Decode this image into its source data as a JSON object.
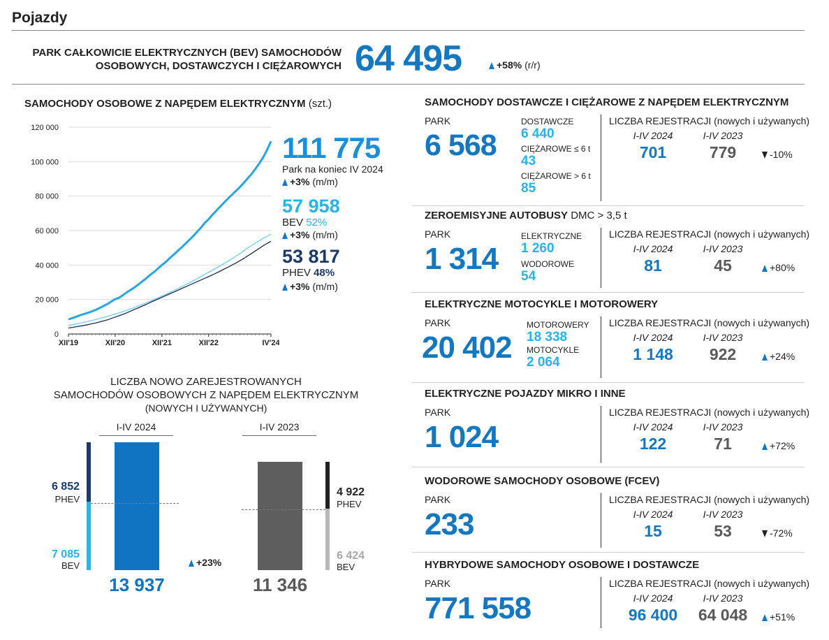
{
  "header": {
    "title": "Pojazdy"
  },
  "bev_total": {
    "label_line1": "PARK CAŁKOWICIE ELEKTRYCZNYCH (BEV) SAMOCHODÓW",
    "label_line2": "OSOBOWYCH, DOSTAWCZYCH I CIĘŻAROWYCH",
    "value": "64 495",
    "change": "+58%",
    "change_unit": "(r/r)",
    "change_dir": "up"
  },
  "passenger_chart": {
    "title": "SAMOCHODY OSOBOWE Z NAPĘDEM ELEKTRYCZNYM",
    "unit": "(szt.)",
    "total_value": "111 775",
    "total_label": "Park na koniec IV 2024",
    "total_change": "+3%",
    "total_change_unit": "(m/m)",
    "bev_value": "57 958",
    "bev_label": "BEV",
    "bev_share": "52%",
    "bev_change": "+3%",
    "bev_change_unit": "(m/m)",
    "phev_value": "53 817",
    "phev_label": "PHEV",
    "phev_share": "48%",
    "phev_change": "+3%",
    "phev_change_unit": "(m/m)"
  },
  "chart_data": [
    {
      "type": "line",
      "title": "SAMOCHODY OSOBOWE Z NAPĘDEM ELEKTRYCZNYM (szt.)",
      "x_ticks": [
        "XII'19",
        "XII'20",
        "XII'21",
        "XII'22",
        "IV'24"
      ],
      "x_tick_index": [
        0,
        12,
        24,
        36,
        52
      ],
      "ylim": [
        0,
        120000
      ],
      "y_ticks": [
        0,
        20000,
        40000,
        60000,
        80000,
        100000,
        120000
      ],
      "y_tick_labels": [
        "0",
        "20 000",
        "40 000",
        "60 000",
        "80 000",
        "100 000",
        "120 000"
      ],
      "grid": true,
      "series": [
        {
          "name": "Park na koniec IV 2024",
          "color": "#27a6e0",
          "values": [
            8500,
            9200,
            10000,
            10900,
            11600,
            12300,
            13100,
            14000,
            15100,
            16200,
            17400,
            18800,
            20200,
            21000,
            22600,
            24200,
            25600,
            27100,
            28800,
            30600,
            32300,
            34300,
            36000,
            38000,
            40000,
            41800,
            44000,
            46000,
            48100,
            50100,
            52300,
            54500,
            56700,
            59200,
            61600,
            64500,
            66600,
            69200,
            71600,
            74000,
            76300,
            78700,
            80800,
            83000,
            85200,
            87600,
            90200,
            92800,
            95800,
            99000,
            102500,
            106800,
            111775
          ]
        },
        {
          "name": "BEV",
          "color": "#6fcdef",
          "values": [
            5000,
            5400,
            5800,
            6300,
            6800,
            7300,
            7800,
            8400,
            9000,
            9600,
            10200,
            10900,
            11600,
            12300,
            13000,
            13800,
            14600,
            15400,
            16300,
            17200,
            18100,
            19000,
            20000,
            21000,
            22000,
            23000,
            24100,
            25200,
            26300,
            27400,
            28500,
            29600,
            30800,
            32000,
            33300,
            34700,
            35800,
            37000,
            38300,
            39600,
            41000,
            42300,
            43700,
            45200,
            46600,
            48200,
            49900,
            51300,
            52700,
            54100,
            55500,
            56700,
            57958
          ]
        },
        {
          "name": "PHEV",
          "color": "#1b2c4a",
          "values": [
            3500,
            3800,
            4200,
            4600,
            5000,
            5400,
            5900,
            6400,
            7000,
            7600,
            8200,
            9000,
            9800,
            10600,
            11400,
            12300,
            13300,
            14300,
            15200,
            16200,
            17200,
            18300,
            19300,
            20300,
            21300,
            22300,
            23300,
            24300,
            25300,
            26300,
            27300,
            28300,
            29300,
            30300,
            31300,
            32300,
            33300,
            34300,
            35400,
            36500,
            37700,
            38800,
            40000,
            41200,
            42500,
            43800,
            45300,
            46700,
            48200,
            49700,
            51200,
            52500,
            53817
          ]
        }
      ]
    },
    {
      "type": "bar",
      "title": "LICZBA NOWO ZAREJESTROWANYCH SAMOCHODÓW OSOBOWYCH Z NAPĘDEM ELEKTRYCZNYM (NOWYCH I UŻYWANYCH)",
      "categories": [
        "I-IV 2024",
        "I-IV 2023"
      ],
      "series": [
        {
          "name": "PHEV",
          "values": [
            6852,
            4922
          ]
        },
        {
          "name": "BEV",
          "values": [
            7085,
            6424
          ]
        }
      ],
      "totals": [
        13937,
        11346
      ]
    }
  ],
  "regs_chart": {
    "title_line1": "LICZBA NOWO ZAREJESTROWANYCH",
    "title_line2": "SAMOCHODÓW OSOBOWYCH Z NAPĘDEM ELEKTRYCZNYM",
    "title_line3": "(NOWYCH I UŻYWANYCH)",
    "period_2024": "I-IV 2024",
    "period_2023": "I-IV 2023",
    "phev_2024": "6 852",
    "bev_2024": "7 085",
    "total_2024": "13 937",
    "phev_2023": "4 922",
    "bev_2023": "6 424",
    "total_2023": "11 346",
    "phev_label": "PHEV",
    "bev_label": "BEV",
    "change": "+23%"
  },
  "sections": [
    {
      "id": "vans",
      "title": "SAMOCHODY DOSTAWCZE I CIĘŻAROWE Z NAPĘDEM ELEKTRYCZNYM",
      "title_suffix": "",
      "park_label": "PARK",
      "park_value": "6 568",
      "sub": [
        {
          "label": "DOSTAWCZE",
          "value": "6 440"
        },
        {
          "label": "CIĘŻAROWE ≤ 6 t",
          "value": "43"
        },
        {
          "label": "CIĘŻAROWE > 6 t",
          "value": "85"
        }
      ],
      "reg_title": "LICZBA REJESTRACJI (nowych i używanych)",
      "period_a": "I-IV 2024",
      "period_b": "I-IV 2023",
      "reg_a": "701",
      "reg_b": "779",
      "change": "-10%",
      "change_dir": "down"
    },
    {
      "id": "buses",
      "title": "ZEROEMISYJNE AUTOBUSY",
      "title_suffix": "DMC > 3,5 t",
      "park_label": "PARK",
      "park_value": "1 314",
      "sub": [
        {
          "label": "ELEKTRYCZNE",
          "value": "1 260"
        },
        {
          "label": "WODOROWE",
          "value": "54"
        }
      ],
      "reg_title": "LICZBA REJESTRACJI (nowych i używanych)",
      "period_a": "I-IV 2024",
      "period_b": "I-IV 2023",
      "reg_a": "81",
      "reg_b": "45",
      "change": "+80%",
      "change_dir": "up"
    },
    {
      "id": "moto",
      "title": "ELEKTRYCZNE MOTOCYKLE I MOTOROWERY",
      "title_suffix": "",
      "park_label": "PARK",
      "park_value": "20 402",
      "sub": [
        {
          "label": "MOTOROWERY",
          "value": "18 338"
        },
        {
          "label": "MOTOCYKLE",
          "value": "2 064"
        }
      ],
      "reg_title": "LICZBA REJESTRACJI (nowych i używanych)",
      "period_a": "I-IV 2024",
      "period_b": "I-IV 2023",
      "reg_a": "1 148",
      "reg_b": "922",
      "change": "+24%",
      "change_dir": "up"
    },
    {
      "id": "micro",
      "title": "ELEKTRYCZNE POJAZDY MIKRO I INNE",
      "title_suffix": "",
      "park_label": "PARK",
      "park_value": "1 024",
      "sub": [],
      "reg_title": "LICZBA REJESTRACJI (nowych i używanych)",
      "period_a": "I-IV 2024",
      "period_b": "I-IV 2023",
      "reg_a": "122",
      "reg_b": "71",
      "change": "+72%",
      "change_dir": "up"
    },
    {
      "id": "fcev",
      "title": "WODOROWE SAMOCHODY OSOBOWE (FCEV)",
      "title_suffix": "",
      "park_label": "PARK",
      "park_value": "233",
      "sub": [],
      "reg_title": "LICZBA REJESTRACJI (nowych i używanych)",
      "period_a": "I-IV 2024",
      "period_b": "I-IV 2023",
      "reg_a": "15",
      "reg_b": "53",
      "change": "-72%",
      "change_dir": "down"
    },
    {
      "id": "hybrid",
      "title": "HYBRYDOWE SAMOCHODY OSOBOWE I DOSTAWCZE",
      "title_suffix": "",
      "park_label": "PARK",
      "park_value": "771 558",
      "sub": [],
      "reg_title": "LICZBA REJESTRACJI (nowych i używanych)",
      "period_a": "I-IV 2024",
      "period_b": "I-IV 2023",
      "reg_a": "96 400",
      "reg_b": "64 048",
      "change": "+51%",
      "change_dir": "up"
    }
  ]
}
